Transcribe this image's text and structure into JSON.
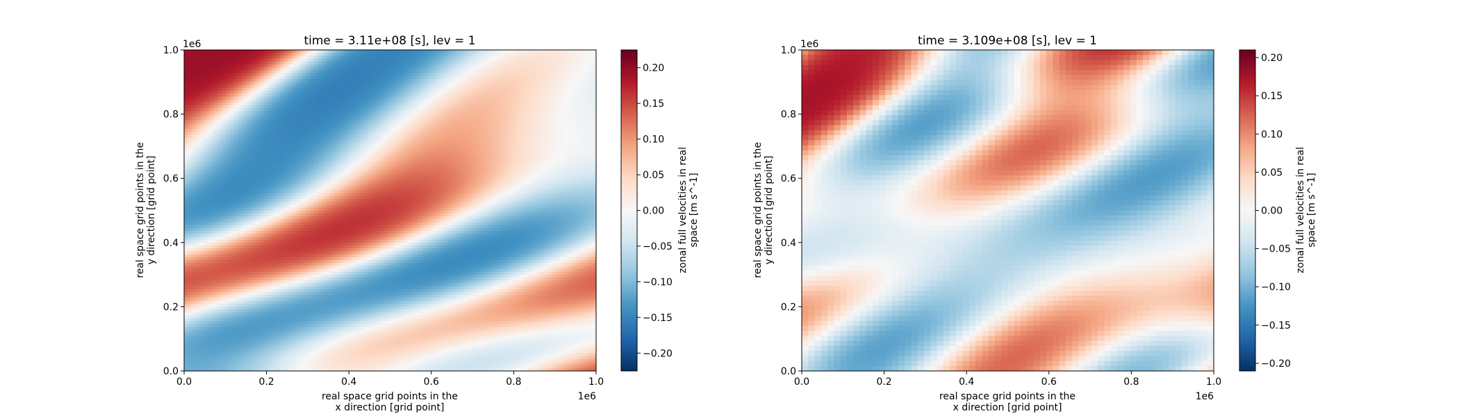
{
  "chart_data": [
    {
      "type": "heatmap",
      "title": "time = 3.11e+08 [s], lev = 1",
      "xlabel_lines": [
        "real space grid points in the",
        "x direction [grid point]"
      ],
      "ylabel_lines": [
        "real space grid points in the",
        "y direction [grid point]"
      ],
      "x_multiplier": "1e6",
      "y_multiplier": "1e6",
      "xlim": [
        0.0,
        1.0
      ],
      "ylim": [
        0.0,
        1.0
      ],
      "x_ticks": [
        "0.0",
        "0.2",
        "0.4",
        "0.6",
        "0.8",
        "1.0"
      ],
      "y_ticks": [
        "0.0",
        "0.2",
        "0.4",
        "0.6",
        "0.8",
        "1.0"
      ],
      "colorbar": {
        "label_lines": [
          "zonal full velocities in real",
          "space [m s^-1]"
        ],
        "range": [
          -0.225,
          0.225
        ],
        "ticks": [
          "0.20",
          "0.15",
          "0.10",
          "0.05",
          "0.00",
          "−0.05",
          "−0.10",
          "−0.15",
          "−0.20"
        ],
        "tick_values": [
          0.2,
          0.15,
          0.1,
          0.05,
          0.0,
          -0.05,
          -0.1,
          -0.15,
          -0.2
        ],
        "colormap": "RdBu_r"
      },
      "field_style": "smooth",
      "grid": false
    },
    {
      "type": "heatmap",
      "title": "time = 3.109e+08 [s], lev = 1",
      "xlabel_lines": [
        "real space grid points in the",
        "x direction [grid point]"
      ],
      "ylabel_lines": [
        "real space grid points in the",
        "y direction [grid point]"
      ],
      "x_multiplier": "1e6",
      "y_multiplier": "1e6",
      "xlim": [
        0.0,
        1.0
      ],
      "ylim": [
        0.0,
        1.0
      ],
      "x_ticks": [
        "0.0",
        "0.2",
        "0.4",
        "0.6",
        "0.8",
        "1.0"
      ],
      "y_ticks": [
        "0.0",
        "0.2",
        "0.4",
        "0.6",
        "0.8",
        "1.0"
      ],
      "colorbar": {
        "label_lines": [
          "zonal full velocities in real",
          "space [m s^-1]"
        ],
        "range": [
          -0.21,
          0.21
        ],
        "ticks": [
          "0.20",
          "0.15",
          "0.10",
          "0.05",
          "0.00",
          "−0.05",
          "−0.10",
          "−0.15",
          "−0.20"
        ],
        "tick_values": [
          0.2,
          0.15,
          0.1,
          0.05,
          0.0,
          -0.05,
          -0.1,
          -0.15,
          -0.2
        ],
        "colormap": "RdBu_r"
      },
      "field_style": "pixelated",
      "grid": false
    }
  ]
}
